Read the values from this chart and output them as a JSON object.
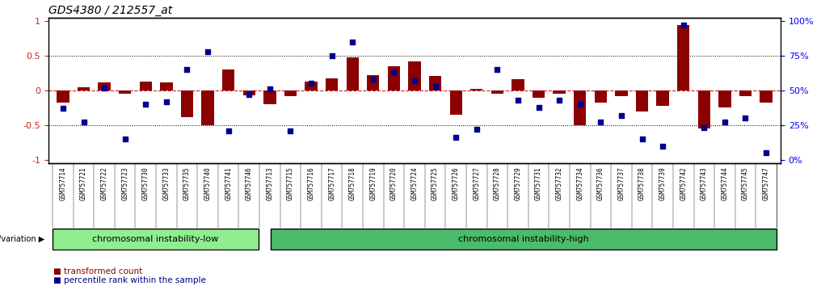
{
  "title": "GDS4380 / 212557_at",
  "samples": [
    "GSM757714",
    "GSM757721",
    "GSM757722",
    "GSM757723",
    "GSM757730",
    "GSM757733",
    "GSM757735",
    "GSM757740",
    "GSM757741",
    "GSM757746",
    "GSM757713",
    "GSM757715",
    "GSM757716",
    "GSM757717",
    "GSM757718",
    "GSM757719",
    "GSM757720",
    "GSM757724",
    "GSM757725",
    "GSM757726",
    "GSM757727",
    "GSM757728",
    "GSM757729",
    "GSM757731",
    "GSM757732",
    "GSM757734",
    "GSM757736",
    "GSM757737",
    "GSM757738",
    "GSM757739",
    "GSM757742",
    "GSM757743",
    "GSM757744",
    "GSM757745",
    "GSM757747"
  ],
  "bar_values": [
    -0.18,
    0.05,
    0.12,
    -0.05,
    0.13,
    0.12,
    -0.38,
    -0.5,
    0.3,
    -0.07,
    -0.2,
    -0.08,
    0.13,
    0.18,
    0.48,
    0.22,
    0.35,
    0.42,
    0.21,
    -0.35,
    0.02,
    -0.05,
    0.16,
    -0.1,
    -0.05,
    -0.5,
    -0.18,
    -0.08,
    -0.3,
    -0.22,
    0.95,
    -0.55,
    -0.25,
    -0.08,
    -0.18
  ],
  "dot_values": [
    0.37,
    0.27,
    0.52,
    0.15,
    0.4,
    0.42,
    0.65,
    0.78,
    0.21,
    0.47,
    0.51,
    0.21,
    0.55,
    0.75,
    0.85,
    0.58,
    0.63,
    0.57,
    0.53,
    0.16,
    0.22,
    0.65,
    0.43,
    0.38,
    0.43,
    0.4,
    0.27,
    0.32,
    0.15,
    0.1,
    0.97,
    0.23,
    0.27,
    0.3,
    0.05
  ],
  "group1_label": "chromosomal instability-low",
  "group1_count": 10,
  "group2_label": "chromosomal instability-high",
  "group_label_prefix": "genotype/variation",
  "legend_bar": "transformed count",
  "legend_dot": "percentile rank within the sample",
  "bar_color": "#8B0000",
  "dot_color": "#00008B",
  "background_color": "#ffffff",
  "group1_color": "#90EE90",
  "group2_color": "#4CBB6A",
  "yticks_left": [
    -1,
    -0.5,
    0,
    0.5,
    1
  ],
  "yticks_right": [
    0,
    25,
    50,
    75,
    100
  ],
  "ylim": [
    -1.05,
    1.05
  ],
  "dotted_lines": [
    -0.5,
    0.5
  ],
  "zero_line": 0.0,
  "xlabel_color": "#333333",
  "xlabel_bgcolor": "#D0D0D0"
}
